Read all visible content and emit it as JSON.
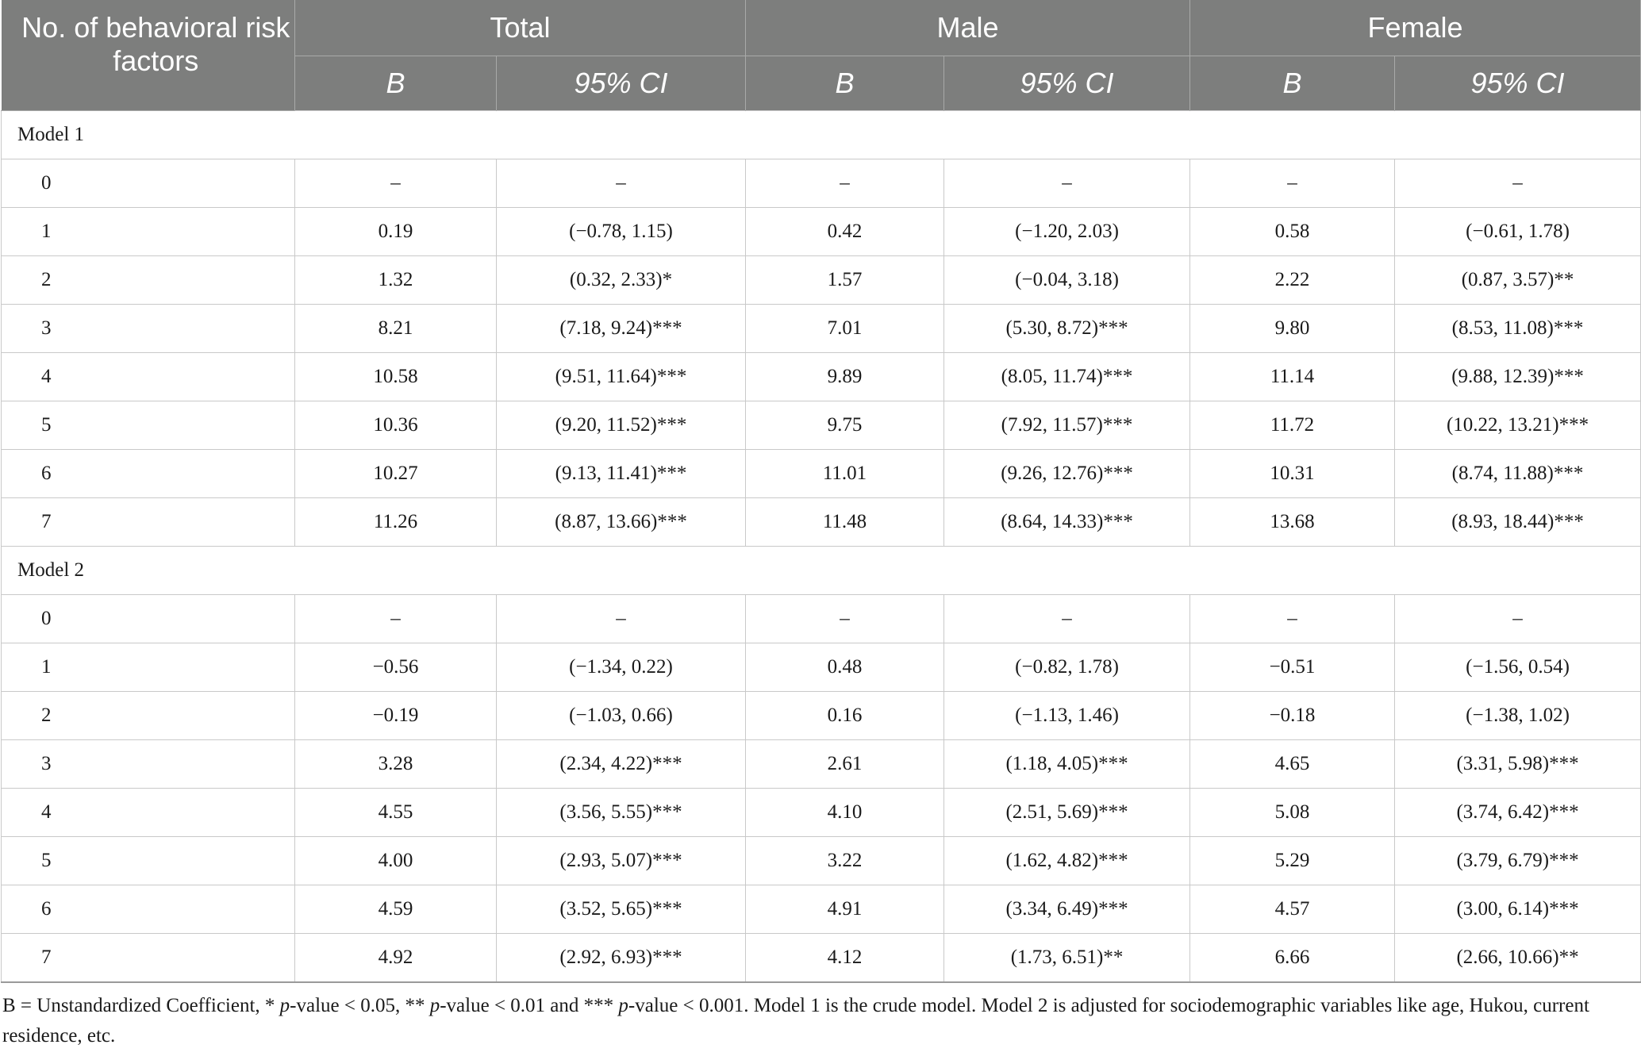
{
  "table": {
    "header": {
      "first_col": "No. of behavioral risk factors",
      "groups": [
        "Total",
        "Male",
        "Female"
      ],
      "sub": [
        "B",
        "95% CI"
      ]
    },
    "sections": [
      {
        "title": "Model 1",
        "rows": [
          [
            "0",
            "–",
            "–",
            "–",
            "–",
            "–",
            "–"
          ],
          [
            "1",
            "0.19",
            "(−0.78, 1.15)",
            "0.42",
            "(−1.20, 2.03)",
            "0.58",
            "(−0.61, 1.78)"
          ],
          [
            "2",
            "1.32",
            "(0.32, 2.33)*",
            "1.57",
            "(−0.04, 3.18)",
            "2.22",
            "(0.87, 3.57)**"
          ],
          [
            "3",
            "8.21",
            "(7.18, 9.24)***",
            "7.01",
            "(5.30, 8.72)***",
            "9.80",
            "(8.53, 11.08)***"
          ],
          [
            "4",
            "10.58",
            "(9.51, 11.64)***",
            "9.89",
            "(8.05, 11.74)***",
            "11.14",
            "(9.88, 12.39)***"
          ],
          [
            "5",
            "10.36",
            "(9.20, 11.52)***",
            "9.75",
            "(7.92, 11.57)***",
            "11.72",
            "(10.22, 13.21)***"
          ],
          [
            "6",
            "10.27",
            "(9.13, 11.41)***",
            "11.01",
            "(9.26, 12.76)***",
            "10.31",
            "(8.74, 11.88)***"
          ],
          [
            "7",
            "11.26",
            "(8.87, 13.66)***",
            "11.48",
            "(8.64, 14.33)***",
            "13.68",
            "(8.93, 18.44)***"
          ]
        ]
      },
      {
        "title": "Model 2",
        "rows": [
          [
            "0",
            "–",
            "–",
            "–",
            "–",
            "–",
            "–"
          ],
          [
            "1",
            "−0.56",
            "(−1.34, 0.22)",
            "0.48",
            "(−0.82, 1.78)",
            "−0.51",
            "(−1.56, 0.54)"
          ],
          [
            "2",
            "−0.19",
            "(−1.03, 0.66)",
            "0.16",
            "(−1.13, 1.46)",
            "−0.18",
            "(−1.38, 1.02)"
          ],
          [
            "3",
            "3.28",
            "(2.34, 4.22)***",
            "2.61",
            "(1.18, 4.05)***",
            "4.65",
            "(3.31, 5.98)***"
          ],
          [
            "4",
            "4.55",
            "(3.56, 5.55)***",
            "4.10",
            "(2.51, 5.69)***",
            "5.08",
            "(3.74, 6.42)***"
          ],
          [
            "5",
            "4.00",
            "(2.93, 5.07)***",
            "3.22",
            "(1.62, 4.82)***",
            "5.29",
            "(3.79, 6.79)***"
          ],
          [
            "6",
            "4.59",
            "(3.52, 5.65)***",
            "4.91",
            "(3.34, 6.49)***",
            "4.57",
            "(3.00, 6.14)***"
          ],
          [
            "7",
            "4.92",
            "(2.92, 6.93)***",
            "4.12",
            "(1.73, 6.51)**",
            "6.66",
            "(2.66, 10.66)**"
          ]
        ]
      }
    ]
  },
  "footnote": {
    "prefix": "B = Unstandardized Coefficient, * ",
    "p1": "p",
    "t1": "-value < 0.05, ** ",
    "p2": "p",
    "t2": "-value < 0.01 and *** ",
    "p3": "p",
    "t3": "-value < 0.001. Model 1 is the crude model. Model 2 is adjusted for sociodemographic variables like age, Hukou, current residence, etc."
  }
}
